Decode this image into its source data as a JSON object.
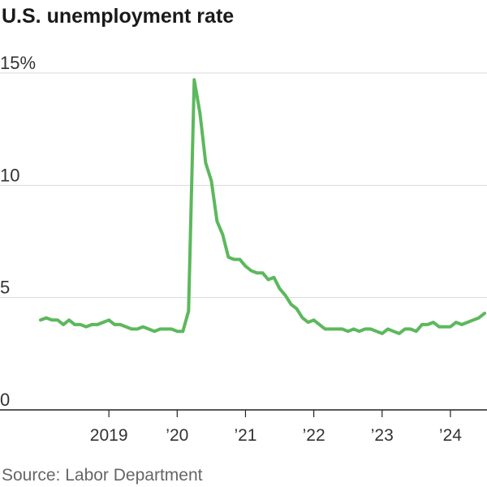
{
  "header": {
    "title": "U.S. unemployment rate"
  },
  "footer": {
    "source": "Source: Labor Department"
  },
  "chart_data": {
    "type": "line",
    "title": "U.S. unemployment rate",
    "xlabel": "",
    "ylabel": "",
    "ylim": [
      0,
      15
    ],
    "yticks": [
      0,
      5,
      10,
      15
    ],
    "ytick_labels": [
      "0",
      "5",
      "10",
      "15%"
    ],
    "xlim": [
      "2018-01",
      "2024-07"
    ],
    "xticks": [
      "2019-01",
      "2020-01",
      "2021-01",
      "2022-01",
      "2023-01",
      "2024-01"
    ],
    "xtick_labels": [
      "2019",
      "’20",
      "’21",
      "’22",
      "’23",
      "’24"
    ],
    "grid": true,
    "legend": "none",
    "colors": {
      "line": "#5cb85c"
    },
    "series": [
      {
        "x": [
          "2018-01",
          "2018-02",
          "2018-03",
          "2018-04",
          "2018-05",
          "2018-06",
          "2018-07",
          "2018-08",
          "2018-09",
          "2018-10",
          "2018-11",
          "2018-12",
          "2019-01",
          "2019-02",
          "2019-03",
          "2019-04",
          "2019-05",
          "2019-06",
          "2019-07",
          "2019-08",
          "2019-09",
          "2019-10",
          "2019-11",
          "2019-12",
          "2020-01",
          "2020-02",
          "2020-03",
          "2020-04",
          "2020-05",
          "2020-06",
          "2020-07",
          "2020-08",
          "2020-09",
          "2020-10",
          "2020-11",
          "2020-12",
          "2021-01",
          "2021-02",
          "2021-03",
          "2021-04",
          "2021-05",
          "2021-06",
          "2021-07",
          "2021-08",
          "2021-09",
          "2021-10",
          "2021-11",
          "2021-12",
          "2022-01",
          "2022-02",
          "2022-03",
          "2022-04",
          "2022-05",
          "2022-06",
          "2022-07",
          "2022-08",
          "2022-09",
          "2022-10",
          "2022-11",
          "2022-12",
          "2023-01",
          "2023-02",
          "2023-03",
          "2023-04",
          "2023-05",
          "2023-06",
          "2023-07",
          "2023-08",
          "2023-09",
          "2023-10",
          "2023-11",
          "2023-12",
          "2024-01",
          "2024-02",
          "2024-03",
          "2024-04",
          "2024-05",
          "2024-06",
          "2024-07"
        ],
        "values": [
          4.0,
          4.1,
          4.0,
          4.0,
          3.8,
          4.0,
          3.8,
          3.8,
          3.7,
          3.8,
          3.8,
          3.9,
          4.0,
          3.8,
          3.8,
          3.7,
          3.6,
          3.6,
          3.7,
          3.6,
          3.5,
          3.6,
          3.6,
          3.6,
          3.5,
          3.5,
          4.4,
          14.7,
          13.2,
          11.0,
          10.2,
          8.4,
          7.8,
          6.8,
          6.7,
          6.7,
          6.4,
          6.2,
          6.1,
          6.1,
          5.8,
          5.9,
          5.4,
          5.1,
          4.7,
          4.5,
          4.1,
          3.9,
          4.0,
          3.8,
          3.6,
          3.6,
          3.6,
          3.6,
          3.5,
          3.6,
          3.5,
          3.6,
          3.6,
          3.5,
          3.4,
          3.6,
          3.5,
          3.4,
          3.6,
          3.6,
          3.5,
          3.8,
          3.8,
          3.9,
          3.7,
          3.7,
          3.7,
          3.9,
          3.8,
          3.9,
          4.0,
          4.1,
          4.3
        ]
      }
    ]
  },
  "sizing": {}
}
